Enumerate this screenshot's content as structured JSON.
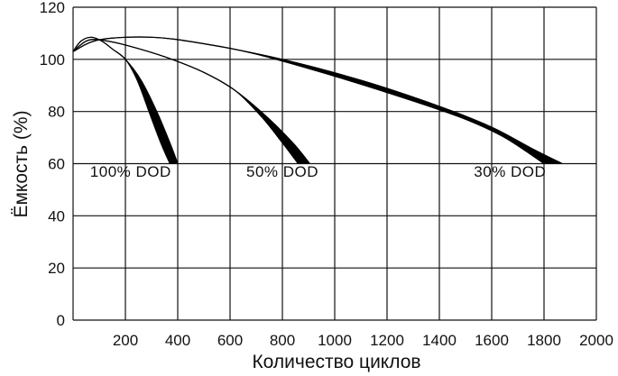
{
  "chart_data": {
    "type": "line",
    "title": "",
    "xlabel": "Количество циклов",
    "ylabel": "Ёмкость (%)",
    "xlim": [
      0,
      2000
    ],
    "ylim": [
      0,
      120
    ],
    "xticks": [
      "200",
      "400",
      "600",
      "800",
      "1000",
      "1200",
      "1400",
      "1600",
      "1800",
      "2000"
    ],
    "yticks": [
      "0",
      "20",
      "40",
      "60",
      "80",
      "100",
      "120"
    ],
    "grid": true,
    "series": [
      {
        "name": "100% DOD",
        "label_at": [
          220,
          55
        ],
        "upper": [
          [
            0,
            103
          ],
          [
            30,
            107
          ],
          [
            70,
            108.5
          ],
          [
            110,
            107
          ],
          [
            150,
            104
          ],
          [
            200,
            100
          ],
          [
            260,
            92
          ],
          [
            320,
            80
          ],
          [
            370,
            68
          ],
          [
            400,
            60
          ]
        ],
        "lower": [
          [
            0,
            103
          ],
          [
            30,
            107
          ],
          [
            70,
            108.5
          ],
          [
            110,
            107
          ],
          [
            150,
            104
          ],
          [
            200,
            100
          ],
          [
            245,
            92
          ],
          [
            290,
            80
          ],
          [
            335,
            68
          ],
          [
            370,
            60
          ]
        ]
      },
      {
        "name": "50% DOD",
        "label_at": [
          800,
          55
        ],
        "upper": [
          [
            0,
            103
          ],
          [
            50,
            107
          ],
          [
            100,
            107.5
          ],
          [
            200,
            105.5
          ],
          [
            350,
            101
          ],
          [
            500,
            95
          ],
          [
            620,
            88
          ],
          [
            740,
            78
          ],
          [
            840,
            68
          ],
          [
            905,
            60
          ]
        ],
        "lower": [
          [
            0,
            103
          ],
          [
            50,
            107
          ],
          [
            100,
            107.5
          ],
          [
            200,
            105.5
          ],
          [
            350,
            101
          ],
          [
            500,
            95
          ],
          [
            620,
            88
          ],
          [
            720,
            78
          ],
          [
            800,
            68
          ],
          [
            860,
            60
          ]
        ]
      },
      {
        "name": "30% DOD",
        "label_at": [
          1670,
          55
        ],
        "upper": [
          [
            0,
            103
          ],
          [
            100,
            107.5
          ],
          [
            300,
            108.5
          ],
          [
            500,
            106
          ],
          [
            800,
            100
          ],
          [
            1100,
            92
          ],
          [
            1400,
            82
          ],
          [
            1600,
            74
          ],
          [
            1750,
            66
          ],
          [
            1870,
            60
          ]
        ],
        "lower": [
          [
            0,
            103
          ],
          [
            100,
            107.5
          ],
          [
            300,
            108.5
          ],
          [
            500,
            106
          ],
          [
            700,
            102
          ],
          [
            1000,
            93.5
          ],
          [
            1300,
            84
          ],
          [
            1500,
            77
          ],
          [
            1650,
            70
          ],
          [
            1800,
            60
          ]
        ]
      }
    ]
  }
}
